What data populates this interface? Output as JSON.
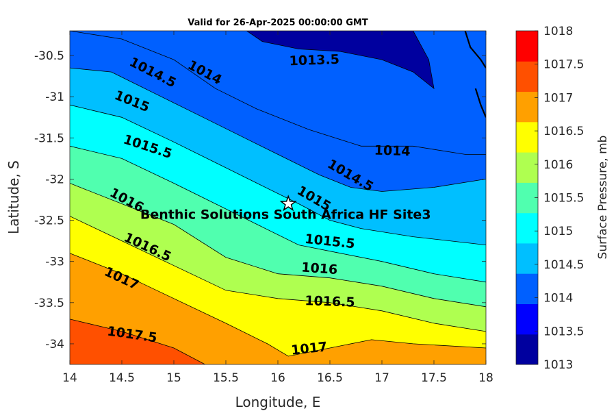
{
  "chart_data": {
    "type": "contour",
    "title": "Valid for 26-Apr-2025 00:00:00 GMT",
    "xlabel": "Longitude, E",
    "ylabel": "Latitude, S",
    "xlim": [
      14,
      18
    ],
    "ylim": [
      -34.25,
      -30.2
    ],
    "x_ticks": [
      14,
      14.5,
      15,
      15.5,
      16,
      16.5,
      17,
      17.5,
      18
    ],
    "x_tick_labels": [
      "14",
      "14.5",
      "15",
      "15.5",
      "16",
      "16.5",
      "17",
      "17.5",
      "18"
    ],
    "y_ticks": [
      -30.5,
      -31,
      -31.5,
      -32,
      -32.5,
      -33,
      -33.5,
      -34
    ],
    "y_tick_labels": [
      "-30.5",
      "-31",
      "-31.5",
      "-32",
      "-32.5",
      "-33",
      "-33.5",
      "-34"
    ],
    "colorbar": {
      "label": "Surface Pressure, mb",
      "range": [
        1013,
        1018
      ],
      "ticks": [
        1013,
        1013.5,
        1014,
        1014.5,
        1015,
        1015.5,
        1016,
        1016.5,
        1017,
        1017.5,
        1018
      ],
      "tick_labels": [
        "1013",
        "1013.5",
        "1014",
        "1014.5",
        "1015",
        "1015.5",
        "1016",
        "1016.5",
        "1017",
        "1017.5",
        "1018"
      ],
      "colors": [
        "#00009f",
        "#0000ff",
        "#0060ff",
        "#00bfff",
        "#00ffff",
        "#50ffaf",
        "#afff50",
        "#ffff00",
        "#ffa000",
        "#ff5000",
        "#ff0000"
      ]
    },
    "contour_lines": [
      {
        "level": 1013.5,
        "label": "1013.5",
        "points": [
          [
            15.7,
            -30.2
          ],
          [
            15.85,
            -30.33
          ],
          [
            16.2,
            -30.42
          ],
          [
            16.6,
            -30.45
          ],
          [
            17.0,
            -30.55
          ],
          [
            17.3,
            -30.7
          ],
          [
            17.5,
            -30.9
          ],
          [
            17.45,
            -30.55
          ],
          [
            17.3,
            -30.2
          ]
        ]
      },
      {
        "level": 1014,
        "label": "1014",
        "points": [
          [
            14.0,
            -30.2
          ],
          [
            14.5,
            -30.3
          ],
          [
            15.0,
            -30.55
          ],
          [
            15.4,
            -30.9
          ],
          [
            15.8,
            -31.15
          ],
          [
            16.3,
            -31.4
          ],
          [
            16.8,
            -31.6
          ],
          [
            17.3,
            -31.6
          ],
          [
            17.8,
            -31.7
          ],
          [
            18.0,
            -31.7
          ]
        ]
      },
      {
        "level": 1014.5,
        "label": "1014.5",
        "points": [
          [
            14.0,
            -30.65
          ],
          [
            14.4,
            -30.7
          ],
          [
            14.8,
            -30.95
          ],
          [
            15.2,
            -31.2
          ],
          [
            15.6,
            -31.45
          ],
          [
            16.0,
            -31.7
          ],
          [
            16.4,
            -31.95
          ],
          [
            16.7,
            -32.1
          ],
          [
            17.0,
            -32.15
          ],
          [
            17.5,
            -32.1
          ],
          [
            18.0,
            -32.0
          ]
        ]
      },
      {
        "level": 1015,
        "label": "1015",
        "points": [
          [
            14.0,
            -31.1
          ],
          [
            14.5,
            -31.25
          ],
          [
            15.0,
            -31.55
          ],
          [
            15.4,
            -31.8
          ],
          [
            15.8,
            -32.05
          ],
          [
            16.2,
            -32.3
          ],
          [
            16.5,
            -32.5
          ],
          [
            16.8,
            -32.6
          ],
          [
            17.3,
            -32.7
          ],
          [
            18.0,
            -32.8
          ]
        ]
      },
      {
        "level": 1015.5,
        "label": "1015.5",
        "points": [
          [
            14.0,
            -31.6
          ],
          [
            14.5,
            -31.75
          ],
          [
            15.0,
            -32.05
          ],
          [
            15.4,
            -32.3
          ],
          [
            15.8,
            -32.55
          ],
          [
            16.2,
            -32.8
          ],
          [
            16.6,
            -32.9
          ],
          [
            17.0,
            -33.0
          ],
          [
            17.5,
            -33.15
          ],
          [
            18.0,
            -33.25
          ]
        ]
      },
      {
        "level": 1016,
        "label": "1016",
        "points": [
          [
            14.0,
            -32.05
          ],
          [
            14.5,
            -32.3
          ],
          [
            15.0,
            -32.55
          ],
          [
            15.5,
            -32.95
          ],
          [
            16.0,
            -33.15
          ],
          [
            16.5,
            -33.2
          ],
          [
            17.0,
            -33.3
          ],
          [
            17.5,
            -33.45
          ],
          [
            18.0,
            -33.55
          ]
        ]
      },
      {
        "level": 1016.5,
        "label": "1016.5",
        "points": [
          [
            14.0,
            -32.45
          ],
          [
            14.5,
            -32.75
          ],
          [
            15.0,
            -33.05
          ],
          [
            15.5,
            -33.35
          ],
          [
            16.0,
            -33.45
          ],
          [
            16.5,
            -33.5
          ],
          [
            17.0,
            -33.6
          ],
          [
            17.5,
            -33.75
          ],
          [
            18.0,
            -33.85
          ]
        ]
      },
      {
        "level": 1017,
        "label": "1017",
        "points": [
          [
            14.0,
            -32.9
          ],
          [
            14.5,
            -33.15
          ],
          [
            15.0,
            -33.45
          ],
          [
            15.5,
            -33.75
          ],
          [
            15.9,
            -34.0
          ],
          [
            16.1,
            -34.15
          ],
          [
            16.5,
            -34.05
          ],
          [
            16.9,
            -33.95
          ],
          [
            17.3,
            -34.0
          ],
          [
            18.0,
            -34.05
          ]
        ]
      },
      {
        "level": 1017.5,
        "label": "1017.5",
        "points": [
          [
            14.0,
            -33.7
          ],
          [
            14.5,
            -33.85
          ],
          [
            15.0,
            -34.05
          ],
          [
            15.3,
            -34.25
          ]
        ]
      }
    ],
    "contour_labels": [
      {
        "text": "1013.5",
        "lon": 16.35,
        "lat": -30.55,
        "angle": -2
      },
      {
        "text": "1014",
        "lon": 15.3,
        "lat": -30.7,
        "angle": 28
      },
      {
        "text": "1014",
        "lon": 17.1,
        "lat": -31.65,
        "angle": 2
      },
      {
        "text": "1014.5",
        "lon": 14.8,
        "lat": -30.7,
        "angle": 27
      },
      {
        "text": "1014.5",
        "lon": 16.7,
        "lat": -31.95,
        "angle": 30
      },
      {
        "text": "1015",
        "lon": 14.6,
        "lat": -31.05,
        "angle": 22
      },
      {
        "text": "1015",
        "lon": 16.35,
        "lat": -32.23,
        "angle": 30
      },
      {
        "text": "1015.5",
        "lon": 14.75,
        "lat": -31.6,
        "angle": 18
      },
      {
        "text": "1015.5",
        "lon": 16.5,
        "lat": -32.75,
        "angle": 6
      },
      {
        "text": "1016",
        "lon": 14.55,
        "lat": -32.25,
        "angle": 28
      },
      {
        "text": "1016",
        "lon": 16.4,
        "lat": -33.08,
        "angle": 4
      },
      {
        "text": "1016.5",
        "lon": 14.75,
        "lat": -32.82,
        "angle": 25
      },
      {
        "text": "1016.5",
        "lon": 16.5,
        "lat": -33.48,
        "angle": 2
      },
      {
        "text": "1017",
        "lon": 14.5,
        "lat": -33.2,
        "angle": 25
      },
      {
        "text": "1017",
        "lon": 16.3,
        "lat": -34.05,
        "angle": -6
      },
      {
        "text": "1017.5",
        "lon": 14.6,
        "lat": -33.88,
        "angle": 8
      }
    ],
    "coastline": [
      [
        17.8,
        -30.2
      ],
      [
        17.85,
        -30.4
      ],
      [
        17.95,
        -30.55
      ],
      [
        18.0,
        -30.65
      ]
    ],
    "coastline_b": [
      [
        17.9,
        -30.9
      ],
      [
        17.95,
        -31.1
      ],
      [
        18.0,
        -31.25
      ]
    ],
    "site": {
      "name": "Benthic Solutions South Africa HF Site3",
      "lon": 16.1,
      "lat": -32.3
    }
  }
}
